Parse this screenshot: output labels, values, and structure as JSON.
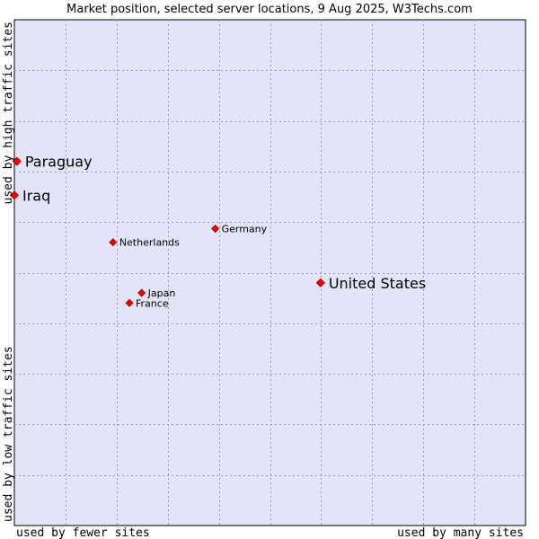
{
  "chart_data": {
    "type": "scatter",
    "title": "Market position, selected server locations, 9 Aug 2025, W3Techs.com",
    "xlabel_left": "used by fewer sites",
    "xlabel_right": "used by many sites",
    "ylabel_bottom": "used by low traffic sites",
    "ylabel_top": "used by high traffic sites",
    "xlim": [
      0,
      10
    ],
    "ylim": [
      0,
      10
    ],
    "grid": true,
    "colors": {
      "plot_bg": "#e4e4f8",
      "grid": "#9a9ab0",
      "marker": "#ee0000",
      "border": "#000000"
    },
    "points": [
      {
        "name": "Paraguay",
        "x": 0.05,
        "y": 7.2,
        "size": "large"
      },
      {
        "name": "Iraq",
        "x": 0.0,
        "y": 6.53,
        "size": "large"
      },
      {
        "name": "Germany",
        "x": 3.93,
        "y": 5.87,
        "size": "small"
      },
      {
        "name": "Netherlands",
        "x": 1.93,
        "y": 5.6,
        "size": "small"
      },
      {
        "name": "United States",
        "x": 5.99,
        "y": 4.8,
        "size": "large"
      },
      {
        "name": "Japan",
        "x": 2.49,
        "y": 4.6,
        "size": "small"
      },
      {
        "name": "France",
        "x": 2.25,
        "y": 4.4,
        "size": "small"
      }
    ]
  }
}
